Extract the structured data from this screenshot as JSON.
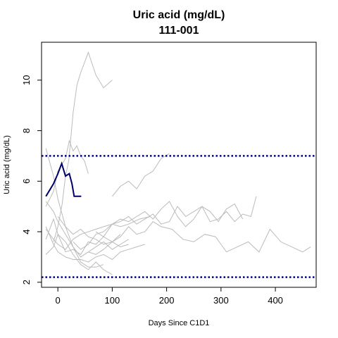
{
  "chart_data": {
    "type": "line",
    "title": "Uric acid (mg/dL)",
    "subtitle": "111-001",
    "xlabel": "Days Since C1D1",
    "ylabel": "Uric acid (mg/dL)",
    "xlim": [
      -30,
      475
    ],
    "ylim": [
      1.8,
      11.5
    ],
    "x_ticks": [
      0,
      100,
      200,
      300,
      400
    ],
    "y_ticks": [
      2,
      4,
      6,
      8,
      10
    ],
    "reference_lines": [
      {
        "y": 7.0,
        "color": "#000080",
        "style": "dotted"
      },
      {
        "y": 2.2,
        "color": "#000080",
        "style": "dotted"
      }
    ],
    "highlight_series": {
      "name": "111-001",
      "color": "#000066",
      "x": [
        -22,
        -8,
        0,
        7,
        14,
        21,
        26,
        30,
        35,
        43
      ],
      "y": [
        5.4,
        5.9,
        6.3,
        6.7,
        6.2,
        6.3,
        5.9,
        5.4,
        5.4,
        5.4
      ]
    },
    "background_color": "#bbbbbb",
    "background_series": [
      {
        "x": [
          -22,
          -8,
          0,
          14,
          28,
          42,
          56,
          70,
          84,
          100,
          115,
          130,
          150,
          170
        ],
        "y": [
          4.1,
          3.7,
          3.5,
          3.3,
          3.7,
          3.9,
          4.0,
          4.1,
          4.2,
          4.3,
          4.2,
          4.3,
          4.5,
          4.6
        ]
      },
      {
        "x": [
          -22,
          -8,
          0,
          14,
          28,
          42,
          56,
          70,
          84
        ],
        "y": [
          7.3,
          6.2,
          5.3,
          4.2,
          3.4,
          2.8,
          2.6,
          2.6,
          2.7
        ]
      },
      {
        "x": [
          -22,
          -8,
          0,
          14,
          28,
          42,
          56,
          70,
          84,
          100,
          115,
          130
        ],
        "y": [
          5.2,
          4.8,
          4.4,
          3.9,
          3.4,
          3.0,
          3.2,
          3.4,
          3.6,
          3.3,
          3.5,
          3.7
        ]
      },
      {
        "x": [
          -22,
          -8,
          0,
          14,
          28,
          42,
          56,
          70,
          84,
          100,
          115
        ],
        "y": [
          3.7,
          4.5,
          3.9,
          3.2,
          3.3,
          3.1,
          3.6,
          3.5,
          3.8,
          3.6,
          3.9
        ]
      },
      {
        "x": [
          -22,
          -8,
          0,
          14,
          21,
          28,
          35,
          42,
          49,
          56
        ],
        "y": [
          5.0,
          5.6,
          6.4,
          6.9,
          7.6,
          7.2,
          7.4,
          7.0,
          6.8,
          6.3
        ]
      },
      {
        "x": [
          -22,
          -8,
          0,
          14,
          28,
          42,
          56,
          70,
          84,
          100,
          115,
          130,
          145,
          160
        ],
        "y": [
          4.2,
          3.5,
          3.2,
          3.0,
          2.9,
          2.9,
          2.8,
          3.0,
          3.1,
          2.9,
          3.2,
          3.3,
          3.4,
          3.5
        ]
      },
      {
        "x": [
          -8,
          0,
          8,
          14,
          20,
          28,
          35,
          42,
          56,
          70,
          84,
          100
        ],
        "y": [
          3.6,
          4.2,
          5.1,
          6.2,
          6.8,
          8.7,
          9.8,
          10.3,
          11.1,
          10.2,
          9.7,
          10.0
        ]
      },
      {
        "x": [
          28,
          42,
          56,
          70,
          84,
          100,
          115,
          130,
          145,
          160,
          175,
          190,
          205,
          220,
          235,
          250,
          265,
          280,
          295,
          310,
          325,
          340,
          355,
          365
        ],
        "y": [
          3.6,
          3.3,
          3.5,
          3.9,
          4.0,
          4.3,
          4.4,
          4.6,
          4.3,
          4.5,
          4.7,
          4.3,
          4.4,
          5.0,
          4.6,
          4.8,
          5.0,
          4.4,
          4.5,
          4.8,
          4.4,
          4.7,
          4.6,
          5.4
        ]
      },
      {
        "x": [
          56,
          70,
          84,
          100,
          115,
          130,
          145,
          160,
          175,
          190,
          210,
          230,
          250,
          270,
          290,
          310,
          330,
          350,
          370,
          390,
          410,
          430,
          450,
          465
        ],
        "y": [
          3.2,
          3.1,
          3.3,
          3.6,
          3.8,
          4.2,
          3.9,
          4.0,
          4.4,
          4.2,
          4.1,
          3.7,
          3.6,
          3.9,
          3.8,
          3.2,
          3.4,
          3.6,
          3.2,
          4.1,
          3.6,
          3.4,
          3.2,
          3.4
        ]
      },
      {
        "x": [
          70,
          84,
          100,
          115,
          130,
          145,
          160,
          175,
          190,
          205,
          220,
          235,
          250,
          265,
          280,
          295,
          310,
          325,
          340
        ],
        "y": [
          4.0,
          3.8,
          4.3,
          4.5,
          4.4,
          4.6,
          4.8,
          4.5,
          4.9,
          5.2,
          4.6,
          4.2,
          4.5,
          5.0,
          4.8,
          4.4,
          4.9,
          5.1,
          4.5
        ]
      },
      {
        "x": [
          100,
          115,
          130,
          145,
          160,
          175,
          190,
          205
        ],
        "y": [
          5.4,
          5.8,
          6.0,
          5.7,
          6.2,
          6.4,
          6.9,
          7.1
        ]
      },
      {
        "x": [
          -22,
          -8,
          0,
          14,
          28,
          42,
          56,
          70,
          84,
          100
        ],
        "y": [
          3.1,
          3.4,
          3.9,
          3.6,
          3.1,
          2.7,
          2.5,
          2.8,
          2.5,
          2.3
        ]
      },
      {
        "x": [
          0,
          14,
          28,
          42,
          56,
          70,
          84,
          100,
          115,
          130
        ],
        "y": [
          4.6,
          4.2,
          3.9,
          4.1,
          3.8,
          3.7,
          3.5,
          3.6,
          3.4,
          3.5
        ]
      }
    ]
  }
}
